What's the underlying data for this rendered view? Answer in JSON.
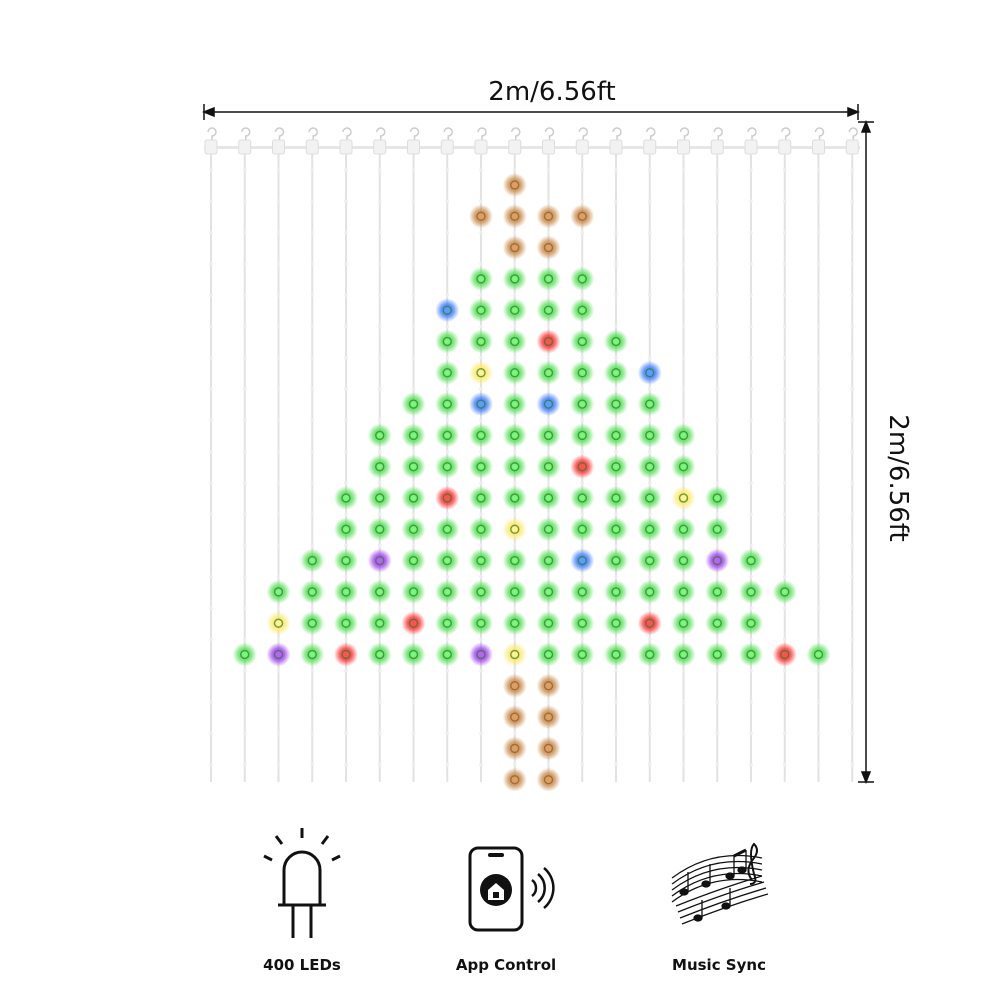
{
  "dimensions": {
    "width_label": "2m/6.56ft",
    "height_label": "2m/6.56ft"
  },
  "features": [
    {
      "label": "400 LEDs"
    },
    {
      "label": "App Control"
    },
    {
      "label": "Music Sync"
    }
  ]
}
